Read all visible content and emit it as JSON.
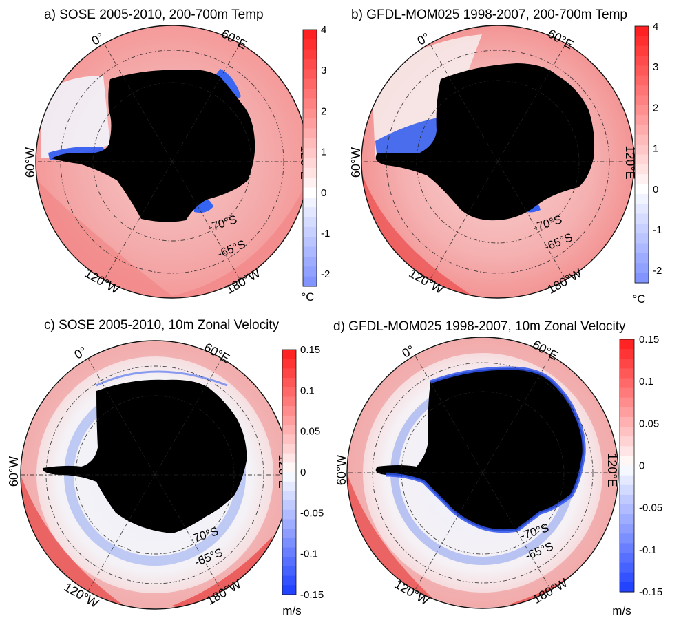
{
  "chart_data": [
    {
      "type": "heatmap",
      "panel": "a",
      "title": "a)  SOSE 2005-2010, 200-700m Temp",
      "colorbar": {
        "ticks": [
          "4",
          "3",
          "2",
          "1",
          "0",
          "-1",
          "-2"
        ],
        "values": [
          4,
          3,
          2,
          1,
          0,
          -1,
          -2
        ],
        "range": [
          -2.3,
          4
        ],
        "unit": "°C"
      },
      "longitude_labels": {
        "lon0": "0°",
        "lon60E": "60°E",
        "lon120E": "120°E",
        "lon60W": "60°W",
        "lon120W": "120°W",
        "lon180W": "180°W"
      },
      "latitude_labels": {
        "lat70": "-70°S",
        "lat65": "-65°S"
      },
      "field_description": {
        "open_ocean": 1.5,
        "ross_pacific_sector": 3,
        "weddell_shelf": -2,
        "ross_shelf": -1.5,
        "amundsen_shelf": 2.5
      }
    },
    {
      "type": "heatmap",
      "panel": "b",
      "title": "b)  GFDL-MOM025 1998-2007, 200-700m  Temp",
      "colorbar": {
        "ticks": [
          "4",
          "3",
          "2",
          "1",
          "0",
          "-1",
          "-2"
        ],
        "values": [
          4,
          3,
          2,
          1,
          0,
          -1,
          -2
        ],
        "range": [
          -2.3,
          4
        ],
        "unit": "°C"
      },
      "longitude_labels": {
        "lon0": "0°",
        "lon60E": "60°E",
        "lon120E": "120°E",
        "lon60W": "60°W",
        "lon120W": "120°W",
        "lon180W": "180°W"
      },
      "latitude_labels": {
        "lat70": "-70°S",
        "lat65": "-65°S"
      },
      "field_description": {
        "open_ocean": 1.8,
        "ross_pacific_sector": 3.5,
        "weddell_shelf": -2,
        "ross_shelf": -1.5,
        "amundsen_shelf": 3.5
      }
    },
    {
      "type": "heatmap",
      "panel": "c",
      "title": "c)  SOSE 2005-2010, 10m Zonal Velocity",
      "colorbar": {
        "ticks": [
          "0.15",
          "0.1",
          "0.05",
          "0",
          "-0.05",
          "-0.1",
          "-0.15"
        ],
        "values": [
          0.15,
          0.1,
          0.05,
          0,
          -0.05,
          -0.1,
          -0.15
        ],
        "range": [
          -0.15,
          0.15
        ],
        "unit": "m/s"
      },
      "longitude_labels": {
        "lon0": "0°",
        "lon60E": "60°E",
        "lon120E": "120°E",
        "lon60W": "60°W",
        "lon120W": "120°W",
        "lon180W": "180°W"
      },
      "latitude_labels": {
        "lat70": "-70°S",
        "lat65": "-65°S"
      },
      "field_description": {
        "outer_ring": 0.08,
        "coastal_current": -0.06
      }
    },
    {
      "type": "heatmap",
      "panel": "d",
      "title": "d)  GFDL-MOM025 1998-2007, 10m  Zonal Velocity",
      "colorbar": {
        "ticks": [
          "0.15",
          "0.1",
          "0.05",
          "0",
          "-0.05",
          "-0.1",
          "-0.15"
        ],
        "values": [
          0.15,
          0.1,
          0.05,
          0,
          -0.05,
          -0.1,
          -0.15
        ],
        "range": [
          -0.15,
          0.15
        ],
        "unit": "m/s"
      },
      "longitude_labels": {
        "lon0": "0°",
        "lon60E": "60°E",
        "lon120E": "120°E",
        "lon60W": "60°W",
        "lon120W": "120°W",
        "lon180W": "180°W"
      },
      "latitude_labels": {
        "lat70": "-70°S",
        "lat65": "-65°S"
      },
      "field_description": {
        "outer_ring": 0.08,
        "coastal_current": -0.12
      }
    }
  ],
  "colors": {
    "positive_max": "#ff1a1a",
    "zero": "#ffffff",
    "negative_max": "#1a3cff",
    "land": "#000000"
  }
}
